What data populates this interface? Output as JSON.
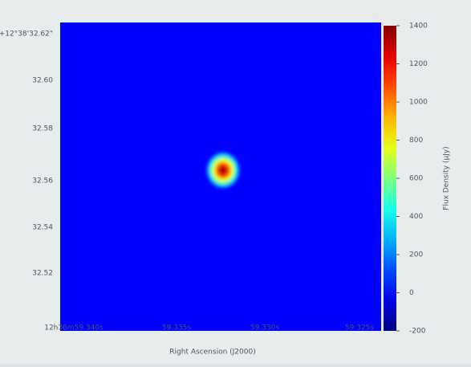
{
  "chart_data": {
    "type": "image",
    "xlabel": "Right Ascension (J2000)",
    "colorbar_label": "Flux Density (μJy)",
    "xtick_labels": [
      "12h36m59.340s",
      "59.335s",
      "59.330s",
      "59.325s"
    ],
    "ytick_labels": [
      "+12°38'32.62\"",
      "32.60",
      "32.58",
      "32.56",
      "32.54",
      "32.52"
    ],
    "background_value": 0,
    "source_peak": 1300,
    "colormap": "jet",
    "clim": [
      -200,
      1400
    ],
    "cticks": [
      -200,
      0,
      200,
      400,
      600,
      800,
      1000,
      1200,
      1400
    ]
  }
}
